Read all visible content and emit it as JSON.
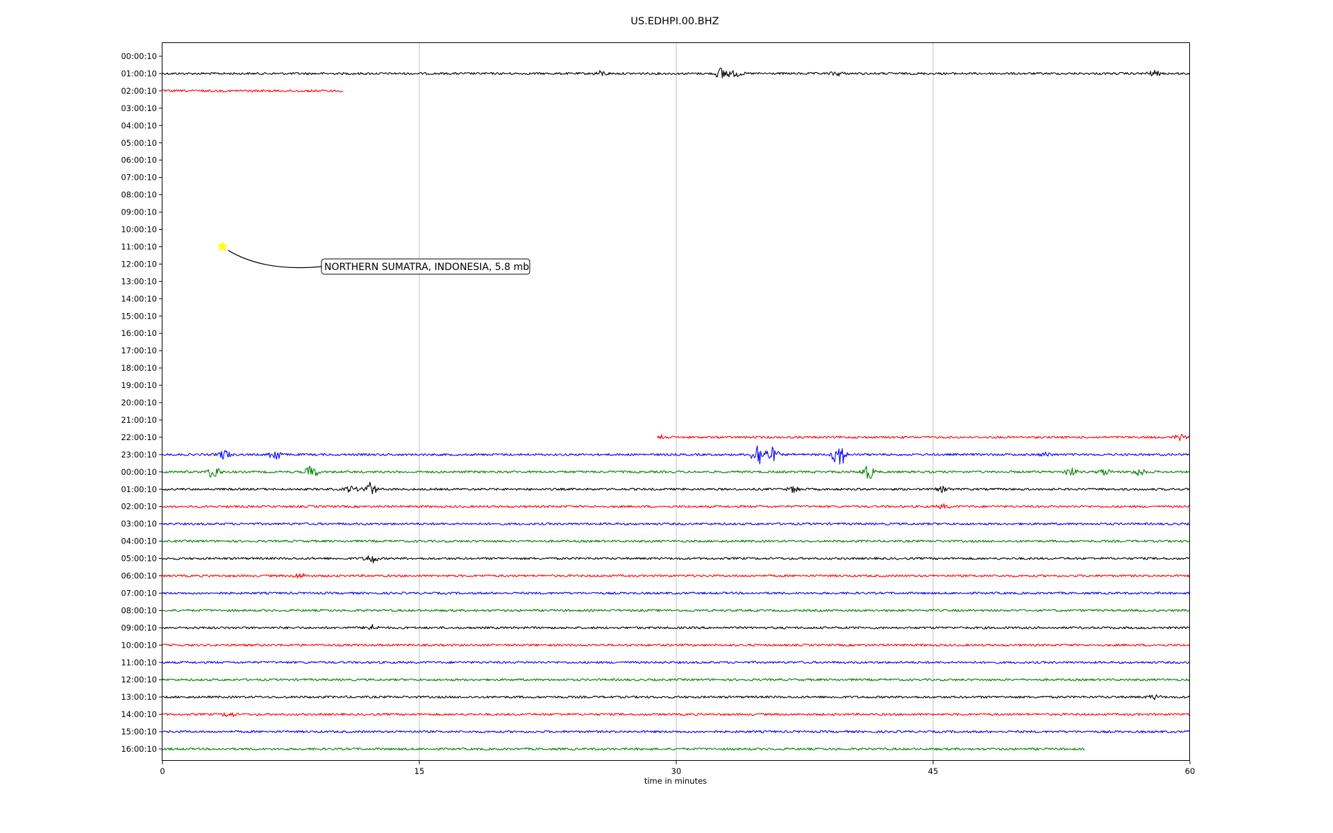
{
  "chart_data": {
    "type": "line",
    "title": "US.EDHPI.00.BHZ",
    "xlabel": "time in minutes",
    "xlim": [
      0,
      60
    ],
    "x_ticks": [
      0,
      15,
      30,
      45,
      60
    ],
    "grid": "vertical lines at 15, 30, 45",
    "y_tick_labels": [
      "00:00:10",
      "01:00:10",
      "02:00:10",
      "03:00:10",
      "04:00:10",
      "05:00:10",
      "06:00:10",
      "07:00:10",
      "08:00:10",
      "09:00:10",
      "10:00:10",
      "11:00:10",
      "12:00:10",
      "13:00:10",
      "14:00:10",
      "15:00:10",
      "16:00:10",
      "17:00:10",
      "18:00:10",
      "19:00:10",
      "20:00:10",
      "21:00:10",
      "22:00:10",
      "23:00:10",
      "00:00:10",
      "01:00:10",
      "02:00:10",
      "03:00:10",
      "04:00:10",
      "05:00:10",
      "06:00:10",
      "07:00:10",
      "08:00:10",
      "09:00:10",
      "10:00:10",
      "11:00:10",
      "12:00:10",
      "13:00:10",
      "14:00:10",
      "15:00:10",
      "16:00:10"
    ],
    "colors": [
      "#000000",
      "#ff0000",
      "#0000ff",
      "#008000"
    ],
    "traces": [
      {
        "row": 1,
        "color": "#000000",
        "start": 0,
        "end": 60,
        "events": [
          [
            25.6,
            0.5
          ],
          [
            32.7,
            1.4
          ],
          [
            33.5,
            0.6
          ],
          [
            39.4,
            0.4
          ],
          [
            57.9,
            0.5
          ]
        ]
      },
      {
        "row": 2,
        "color": "#ff0000",
        "start": 0,
        "end": 10.6,
        "events": []
      },
      {
        "row": 22,
        "color": "#ff0000",
        "start": 28.9,
        "end": 60,
        "events": [
          [
            28.9,
            1.6
          ],
          [
            59.4,
            0.5
          ]
        ]
      },
      {
        "row": 23,
        "color": "#0000ff",
        "start": 0,
        "end": 60,
        "events": [
          [
            3.6,
            1.0
          ],
          [
            6.6,
            1.2
          ],
          [
            34.8,
            2.6
          ],
          [
            35.6,
            1.4
          ],
          [
            39.5,
            2.8
          ],
          [
            51.6,
            0.4
          ]
        ]
      },
      {
        "row": 24,
        "color": "#008000",
        "start": 0,
        "end": 60,
        "events": [
          [
            3.0,
            1.4
          ],
          [
            8.7,
            1.3
          ],
          [
            41.2,
            1.6
          ],
          [
            53.0,
            0.8
          ],
          [
            55.0,
            0.6
          ],
          [
            57.0,
            0.7
          ]
        ]
      },
      {
        "row": 25,
        "color": "#000000",
        "start": 0,
        "end": 60,
        "events": [
          [
            11.0,
            0.6
          ],
          [
            12.1,
            1.4
          ],
          [
            36.9,
            0.6
          ],
          [
            45.6,
            0.5
          ]
        ]
      },
      {
        "row": 26,
        "color": "#ff0000",
        "start": 0,
        "end": 60,
        "events": [
          [
            45.6,
            0.4
          ]
        ]
      },
      {
        "row": 27,
        "color": "#0000ff",
        "start": 0,
        "end": 60,
        "events": []
      },
      {
        "row": 28,
        "color": "#008000",
        "start": 0,
        "end": 60,
        "events": []
      },
      {
        "row": 29,
        "color": "#000000",
        "start": 0,
        "end": 60,
        "events": [
          [
            12.2,
            0.9
          ]
        ]
      },
      {
        "row": 30,
        "color": "#ff0000",
        "start": 0,
        "end": 60,
        "events": [
          [
            8.0,
            0.5
          ]
        ]
      },
      {
        "row": 31,
        "color": "#0000ff",
        "start": 0,
        "end": 60,
        "events": []
      },
      {
        "row": 32,
        "color": "#008000",
        "start": 0,
        "end": 60,
        "events": []
      },
      {
        "row": 33,
        "color": "#000000",
        "start": 0,
        "end": 60,
        "events": [
          [
            12.2,
            0.6
          ]
        ]
      },
      {
        "row": 34,
        "color": "#ff0000",
        "start": 0,
        "end": 60,
        "events": []
      },
      {
        "row": 35,
        "color": "#0000ff",
        "start": 0,
        "end": 60,
        "events": []
      },
      {
        "row": 36,
        "color": "#008000",
        "start": 0,
        "end": 60,
        "events": []
      },
      {
        "row": 37,
        "color": "#000000",
        "start": 0,
        "end": 60,
        "events": [
          [
            57.9,
            0.4
          ]
        ]
      },
      {
        "row": 38,
        "color": "#ff0000",
        "start": 0,
        "end": 60,
        "events": [
          [
            3.9,
            0.5
          ]
        ]
      },
      {
        "row": 39,
        "color": "#0000ff",
        "start": 0,
        "end": 60,
        "events": []
      },
      {
        "row": 40,
        "color": "#008000",
        "start": 0,
        "end": 53.9,
        "events": []
      }
    ],
    "annotation": {
      "text": "NORTHERN SUMATRA, INDONESIA, 5.8 mb",
      "marker": "star",
      "marker_color": "#ffff00",
      "x": 3.5,
      "row": 11
    }
  }
}
